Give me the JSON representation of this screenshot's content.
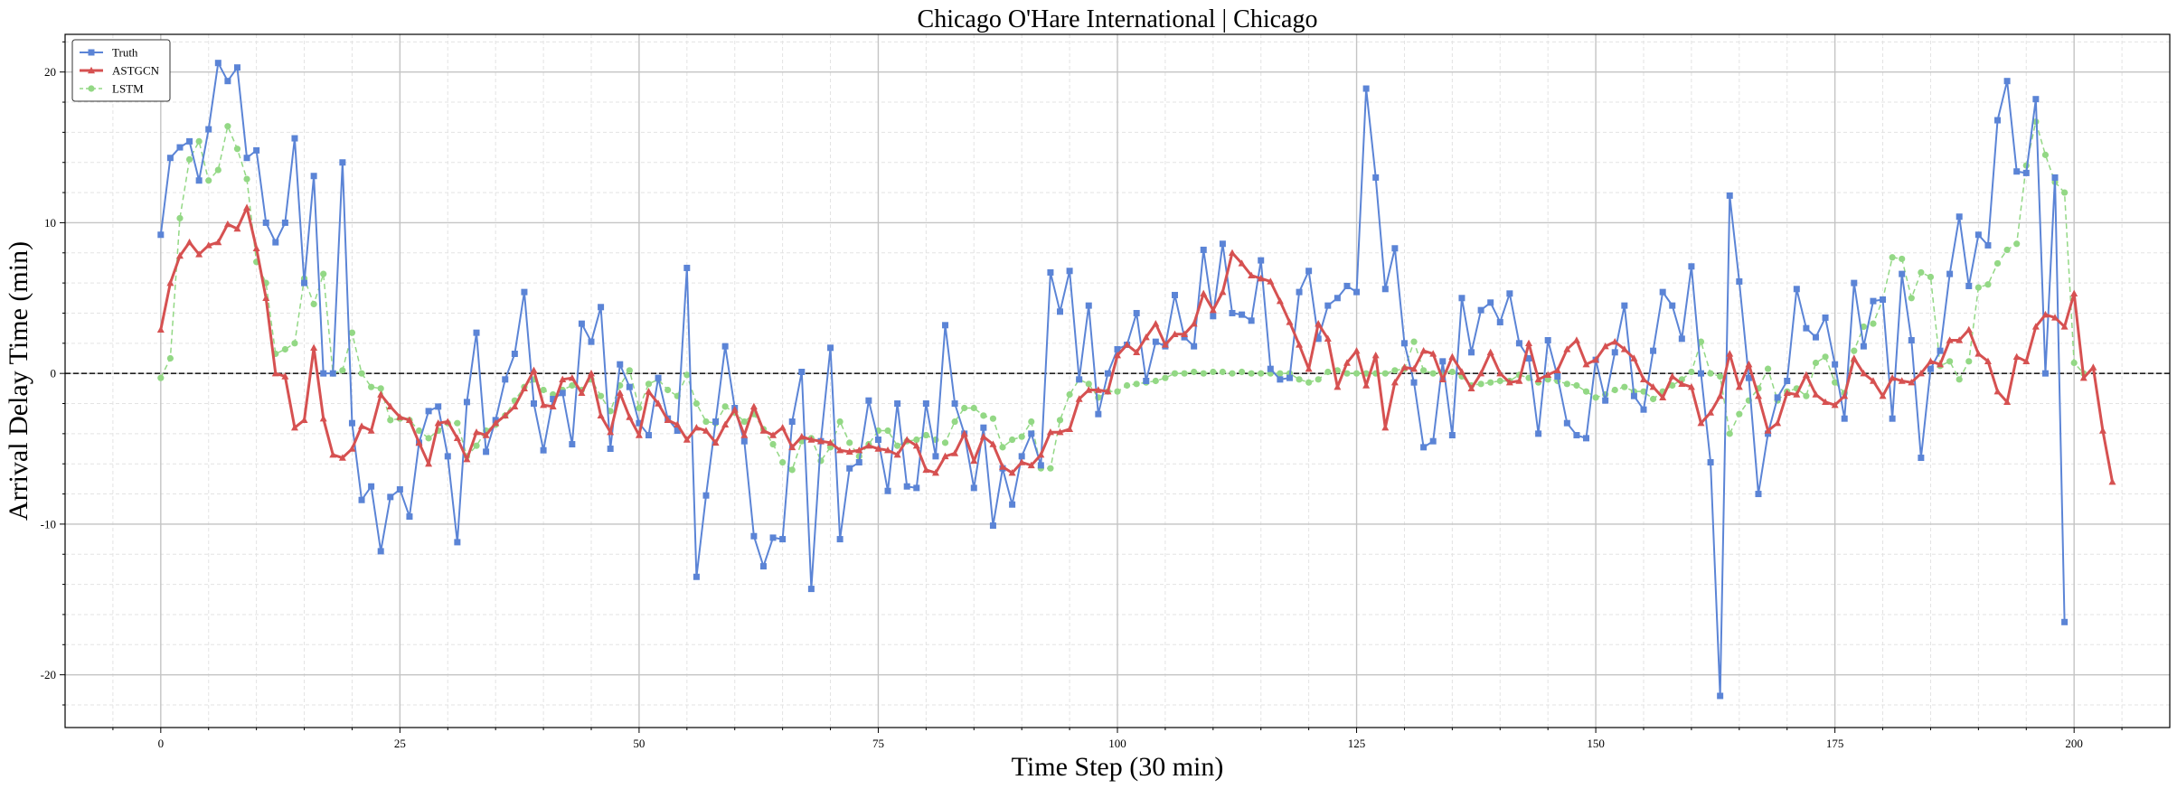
{
  "chart_data": {
    "type": "line",
    "title": "Chicago O'Hare International | Chicago",
    "xlabel": "Time Step (30 min)",
    "ylabel": "Arrival Delay Time (min)",
    "xlim": [
      -10,
      210
    ],
    "ylim": [
      -23.5,
      22.5
    ],
    "xticks": [
      0,
      25,
      50,
      75,
      100,
      125,
      150,
      175,
      200
    ],
    "yticks": [
      -20,
      -10,
      0,
      10,
      20
    ],
    "grid": true,
    "zero_line": true,
    "legend_position": "top-left",
    "colors": {
      "Truth": "#5b84d6",
      "ASTGCN": "#d65151",
      "LSTM": "#93d885"
    },
    "series": [
      {
        "name": "Truth",
        "marker": "square",
        "values": [
          9.2,
          14.3,
          15,
          15.4,
          12.8,
          16.2,
          20.6,
          19.4,
          20.3,
          14.3,
          14.8,
          10,
          8.7,
          10,
          15.6,
          6,
          13.1,
          0,
          0,
          14,
          -3.3,
          -8.4,
          -7.5,
          -11.8,
          -8.2,
          -7.7,
          -9.5,
          -4.6,
          -2.5,
          -2.2,
          -5.5,
          -11.2,
          -1.9,
          2.7,
          -5.2,
          -3.1,
          -0.4,
          1.3,
          5.4,
          -2,
          -5.1,
          -1.7,
          -1.3,
          -4.7,
          3.3,
          2.1,
          4.4,
          -5,
          0.6,
          -0.9,
          -3.3,
          -4.1,
          -0.3,
          -3,
          -3.8,
          7,
          -13.5,
          -8.1,
          -3.2,
          1.8,
          -2.3,
          -4.5,
          -10.8,
          -12.8,
          -10.9,
          -11,
          -3.2,
          0.1,
          -14.3,
          -4.5,
          1.7,
          -11,
          -6.3,
          -5.9,
          -1.8,
          -4.4,
          -7.8,
          -2,
          -7.5,
          -7.6,
          -2,
          -5.5,
          3.2,
          -2,
          -4,
          -7.6,
          -3.6,
          -10.1,
          -6.3,
          -8.7,
          -5.5,
          -4,
          -6.1,
          6.7,
          4.1,
          6.8,
          -0.4,
          4.5,
          -2.7,
          0,
          1.6,
          1.9,
          4,
          -0.5,
          2.1,
          1.8,
          5.2,
          2.4,
          1.8,
          8.2,
          3.8,
          8.6,
          4,
          3.9,
          3.5,
          7.5,
          0.3,
          -0.4,
          -0.3,
          5.4,
          6.8,
          2.3,
          4.5,
          5,
          5.8,
          5.4,
          18.9,
          13,
          5.6,
          8.3,
          2,
          -0.6,
          -4.9,
          -4.5,
          0.8,
          -4.1,
          5,
          1.4,
          4.2,
          4.7,
          3.4,
          5.3,
          2,
          1,
          -4,
          2.2,
          -0.2,
          -3.3,
          -4.1,
          -4.3,
          0.9,
          -1.8,
          1.4,
          4.5,
          -1.5,
          -2.4,
          1.5,
          5.4,
          4.5,
          2.3,
          7.1,
          0,
          -5.9,
          -21.4,
          11.8,
          6.1,
          -0.3,
          -8,
          -4,
          -1.6,
          -0.5,
          5.6,
          3,
          2.4,
          3.7,
          0.6,
          -3,
          6,
          1.8,
          4.8,
          4.9,
          -3,
          6.6,
          2.2,
          -5.6,
          0.3,
          1.5,
          6.6,
          10.4,
          5.8,
          9.2,
          8.5,
          16.8,
          19.4,
          13.4,
          13.3,
          18.2,
          0,
          13,
          -16.5
        ]
      },
      {
        "name": "ASTGCN",
        "marker": "triangle",
        "values": [
          2.9,
          6,
          7.8,
          8.7,
          7.9,
          8.5,
          8.7,
          9.9,
          9.6,
          11,
          8.3,
          5,
          0,
          -0.2,
          -3.6,
          -3.1,
          1.7,
          -3,
          -5.4,
          -5.6,
          -5,
          -3.5,
          -3.8,
          -1.4,
          -2.2,
          -2.9,
          -3.1,
          -4.6,
          -6,
          -3.3,
          -3.2,
          -4.3,
          -5.7,
          -3.9,
          -4.1,
          -3.3,
          -2.8,
          -2.2,
          -1,
          0.2,
          -2.1,
          -2.2,
          -0.4,
          -0.3,
          -1.3,
          0,
          -2.8,
          -3.9,
          -1.3,
          -2.9,
          -4.1,
          -1.2,
          -2,
          -3.1,
          -3.4,
          -4.4,
          -3.6,
          -3.8,
          -4.6,
          -3.4,
          -2.4,
          -4.1,
          -2.2,
          -3.8,
          -4.1,
          -3.6,
          -4.9,
          -4.2,
          -4.4,
          -4.5,
          -4.6,
          -5.1,
          -5.2,
          -5.1,
          -4.8,
          -5,
          -5.1,
          -5.4,
          -4.4,
          -4.8,
          -6.4,
          -6.6,
          -5.5,
          -5.3,
          -4,
          -5.8,
          -4.2,
          -4.7,
          -6.2,
          -6.6,
          -5.9,
          -6.1,
          -5.4,
          -3.9,
          -3.9,
          -3.7,
          -1.7,
          -1.1,
          -1.1,
          -1.2,
          1.2,
          1.9,
          1.4,
          2.4,
          3.3,
          1.9,
          2.6,
          2.6,
          3.3,
          5.3,
          4.2,
          5.4,
          8,
          7.3,
          6.5,
          6.3,
          6.1,
          4.8,
          3.4,
          1.9,
          0.3,
          3.3,
          2.3,
          -0.9,
          0.7,
          1.5,
          -0.8,
          1.2,
          -3.6,
          -0.6,
          0.4,
          0.3,
          1.5,
          1.3,
          -0.4,
          1.1,
          0.1,
          -1,
          0,
          1.4,
          0,
          -0.6,
          -0.5,
          2,
          -0.4,
          -0.1,
          0.2,
          1.6,
          2.2,
          0.6,
          0.9,
          1.8,
          2.1,
          1.6,
          1,
          -0.4,
          -0.9,
          -1.6,
          -0.2,
          -0.7,
          -0.9,
          -3.3,
          -2.6,
          -1.5,
          1.3,
          -0.9,
          0.6,
          -1.5,
          -3.8,
          -3.3,
          -1.3,
          -1.4,
          -0.1,
          -1.4,
          -1.9,
          -2.1,
          -1.5,
          1,
          0,
          -0.5,
          -1.5,
          -0.3,
          -0.5,
          -0.6,
          0,
          0.8,
          0.6,
          2.2,
          2.2,
          2.9,
          1.3,
          0.8,
          -1.2,
          -1.9,
          1.1,
          0.8,
          3.1,
          3.9,
          3.7,
          3.1,
          5.3,
          -0.3,
          0.4,
          -3.8,
          -7.2
        ]
      },
      {
        "name": "LSTM",
        "marker": "circle",
        "values": [
          -0.3,
          1,
          10.3,
          14.2,
          15.4,
          12.8,
          13.5,
          16.4,
          14.9,
          12.9,
          7.4,
          6,
          1.3,
          1.6,
          2,
          6.3,
          4.6,
          6.6,
          0,
          0.2,
          2.7,
          0,
          -0.9,
          -1,
          -3.1,
          -3,
          -3.1,
          -3.8,
          -4.3,
          -3.8,
          -3.3,
          -3.3,
          -5.5,
          -4.8,
          -3.8,
          -3.4,
          -2.8,
          -1.8,
          -0.9,
          -0.4,
          -1.1,
          -1.4,
          -1.1,
          -0.8,
          -1.1,
          -0.4,
          -1.5,
          -2.5,
          -0.8,
          0.2,
          -2.3,
          -0.7,
          -0.4,
          -1.1,
          -1.5,
          -0.1,
          -2,
          -3.2,
          -3.3,
          -2.2,
          -2.6,
          -3.2,
          -2.7,
          -3.7,
          -4.7,
          -5.9,
          -6.4,
          -4.5,
          -4.3,
          -5.8,
          -4.9,
          -3.2,
          -4.6,
          -5.5,
          -4.7,
          -3.8,
          -3.8,
          -4.8,
          -4.5,
          -4.4,
          -4.1,
          -4.4,
          -4.6,
          -3.2,
          -2.3,
          -2.3,
          -2.8,
          -3,
          -4.9,
          -4.4,
          -4.2,
          -3.2,
          -6.3,
          -6.3,
          -3.1,
          -1.4,
          -0.4,
          -0.7,
          -1.6,
          -1.2,
          -1.2,
          -0.8,
          -0.7,
          -0.6,
          -0.5,
          -0.3,
          0,
          0,
          0.1,
          0,
          0.1,
          0.1,
          0,
          0.1,
          0,
          0,
          0,
          0,
          0,
          -0.4,
          -0.6,
          -0.4,
          0.1,
          0.2,
          0,
          0,
          0,
          0,
          0,
          0.2,
          0.3,
          2.1,
          0.2,
          0,
          0.1,
          0.1,
          -0.2,
          -0.8,
          -0.7,
          -0.6,
          -0.5,
          -0.5,
          -0.1,
          -0.3,
          -0.6,
          -0.4,
          -0.5,
          -0.7,
          -0.8,
          -1.2,
          -1.6,
          -1.4,
          -1.1,
          -0.9,
          -1.2,
          -1.2,
          -1.7,
          -1.2,
          -0.8,
          -0.4,
          0.1,
          2.1,
          0,
          -0.2,
          -4,
          -2.7,
          -1.8,
          -1,
          0.3,
          -1.8,
          -1.2,
          -1,
          -1.5,
          0.7,
          1.1,
          -0.6,
          -1.3,
          1.5,
          3.1,
          3.3,
          4.9,
          7.7,
          7.6,
          5,
          6.7,
          6.4,
          0.5,
          0.8,
          -0.4,
          0.8,
          5.7,
          5.9,
          7.3,
          8.2,
          8.6,
          13.8,
          16.7,
          14.5,
          12.7,
          12,
          0.7,
          0
        ]
      }
    ]
  }
}
